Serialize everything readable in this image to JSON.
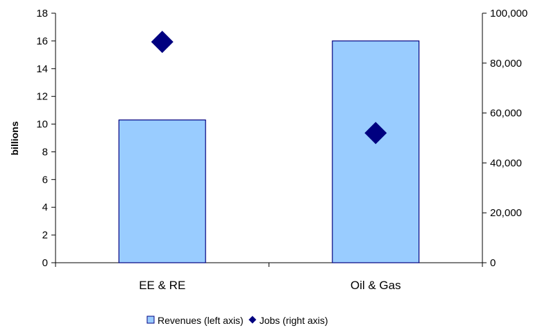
{
  "chart_data": {
    "type": "bar",
    "categories": [
      "EE & RE",
      "Oil & Gas"
    ],
    "series": [
      {
        "name": "Revenues (left axis)",
        "kind": "bar",
        "axis": "left",
        "values": [
          10.3,
          16.0
        ],
        "color": "#99ccff",
        "stroke": "#000080"
      },
      {
        "name": "Jobs (right axis)",
        "kind": "scatter",
        "marker": "diamond",
        "axis": "right",
        "values": [
          88500,
          52000
        ],
        "color": "#000080"
      }
    ],
    "ylabel": "billions",
    "ylim": [
      0,
      18
    ],
    "yticks": [
      "0",
      "2",
      "4",
      "6",
      "8",
      "10",
      "12",
      "14",
      "16",
      "18"
    ],
    "y2lim": [
      0,
      100000
    ],
    "y2ticks": [
      "0",
      "20,000",
      "40,000",
      "60,000",
      "80,000",
      "100,000"
    ],
    "grid": false,
    "legend": "bottom"
  }
}
